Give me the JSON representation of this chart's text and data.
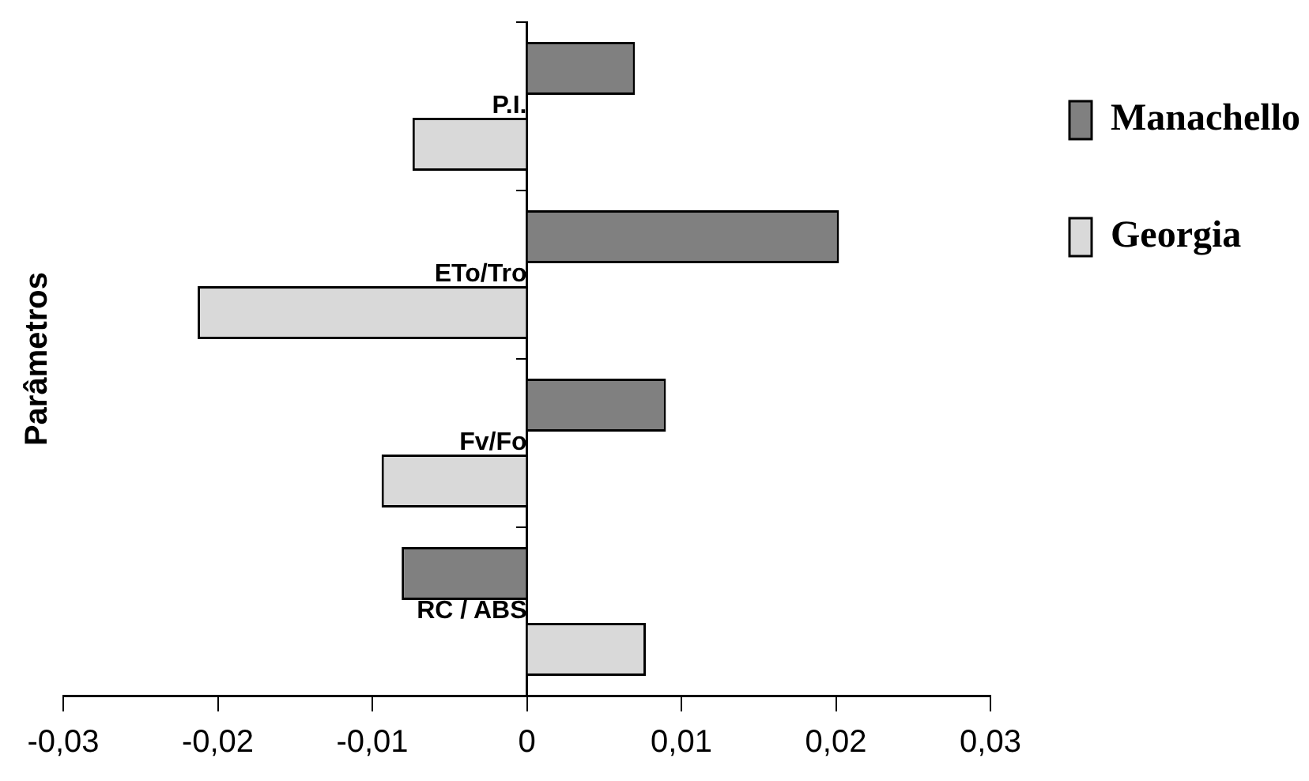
{
  "chart_data": {
    "type": "bar",
    "orientation": "horizontal",
    "ylabel": "Parâmetros",
    "categories": [
      "P.I.",
      "ETo/Tro",
      "Fv/Fo",
      "RC / ABS"
    ],
    "series": [
      {
        "name": "Manachello",
        "color": "#808080",
        "values": [
          0.007,
          0.0202,
          0.009,
          -0.0081
        ]
      },
      {
        "name": "Georgia",
        "color": "#d9d9d9",
        "values": [
          -0.0074,
          -0.0213,
          -0.0094,
          0.0077
        ]
      }
    ],
    "xlim": [
      -0.03,
      0.03
    ],
    "xticks": [
      {
        "value": -0.03,
        "label": "-0,03"
      },
      {
        "value": -0.02,
        "label": "-0,02"
      },
      {
        "value": -0.01,
        "label": "-0,01"
      },
      0,
      {
        "value": 0.01,
        "label": "0,01"
      },
      {
        "value": 0.02,
        "label": "0,02"
      },
      {
        "value": 0.03,
        "label": "0,03"
      }
    ],
    "grid": false,
    "legend": "right"
  }
}
